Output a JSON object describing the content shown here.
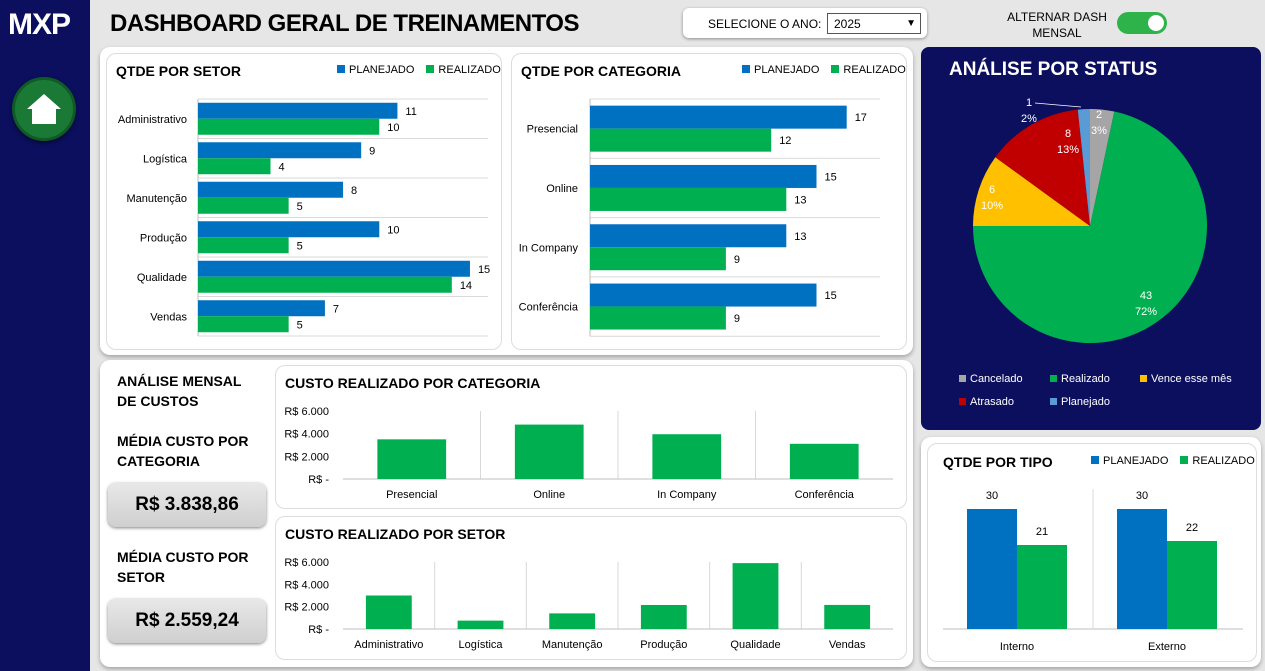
{
  "header": {
    "logo": "MXP",
    "title": "DASHBOARD GERAL DE TREINAMENTOS",
    "year_label": "SELECIONE O ANO:",
    "year_value": "2025",
    "toggle_label": "ALTERNAR DASH MENSAL",
    "toggle_on": true
  },
  "colors": {
    "planejado": "#0070c0",
    "realizado": "#00b050",
    "navy": "#0b0f5e"
  },
  "legend": {
    "planejado": "PLANEJADO",
    "realizado": "REALIZADO"
  },
  "chart_data": [
    {
      "type": "bar",
      "title": "QTDE POR SETOR",
      "orientation": "horizontal",
      "categories": [
        "Administrativo",
        "Logística",
        "Manutenção",
        "Produção",
        "Qualidade",
        "Vendas"
      ],
      "series": [
        {
          "name": "PLANEJADO",
          "values": [
            11,
            9,
            8,
            10,
            15,
            7
          ]
        },
        {
          "name": "REALIZADO",
          "values": [
            10,
            4,
            5,
            5,
            14,
            5
          ]
        }
      ],
      "xlim": [
        0,
        17
      ]
    },
    {
      "type": "bar",
      "title": "QTDE POR CATEGORIA",
      "orientation": "horizontal",
      "categories": [
        "Presencial",
        "Online",
        "In Company",
        "Conferência"
      ],
      "series": [
        {
          "name": "PLANEJADO",
          "values": [
            17,
            15,
            13,
            15
          ]
        },
        {
          "name": "REALIZADO",
          "values": [
            12,
            13,
            9,
            9
          ]
        }
      ],
      "xlim": [
        0,
        19
      ]
    },
    {
      "type": "pie",
      "title": "ANÁLISE POR STATUS",
      "slices": [
        {
          "label": "Cancelado",
          "value": 2,
          "pct": "3%",
          "color": "#a5a5a5"
        },
        {
          "label": "Realizado",
          "value": 43,
          "pct": "72%",
          "color": "#00b050"
        },
        {
          "label": "Vence esse mês",
          "value": 6,
          "pct": "10%",
          "color": "#ffc000"
        },
        {
          "label": "Atrasado",
          "value": 8,
          "pct": "13%",
          "color": "#c00000"
        },
        {
          "label": "Planejado",
          "value": 1,
          "pct": "2%",
          "color": "#5b9bd5"
        }
      ]
    },
    {
      "type": "bar",
      "title": "CUSTO REALIZADO POR CATEGORIA",
      "categories": [
        "Presencial",
        "Online",
        "In Company",
        "Conferência"
      ],
      "values": [
        3500,
        4800,
        3950,
        3105
      ],
      "yticks": [
        "R$ 6.000",
        "R$ 4.000",
        "R$ 2.000",
        "R$ -"
      ],
      "ylim": [
        0,
        6000
      ]
    },
    {
      "type": "bar",
      "title": "CUSTO REALIZADO POR SETOR",
      "categories": [
        "Administrativo",
        "Logística",
        "Manutenção",
        "Produção",
        "Qualidade",
        "Vendas"
      ],
      "values": [
        3000,
        750,
        1400,
        2150,
        5900,
        2155
      ],
      "yticks": [
        "R$ 6.000",
        "R$ 4.000",
        "R$ 2.000",
        "R$ -"
      ],
      "ylim": [
        0,
        6000
      ]
    },
    {
      "type": "bar",
      "title": "QTDE POR TIPO",
      "categories": [
        "Interno",
        "Externo"
      ],
      "series": [
        {
          "name": "PLANEJADO",
          "values": [
            30,
            30
          ]
        },
        {
          "name": "REALIZADO",
          "values": [
            21,
            22
          ]
        }
      ],
      "ylim": [
        0,
        35
      ]
    }
  ],
  "kpis": {
    "section_title": "ANÁLISE MENSAL DE CUSTOS",
    "media_categoria_label": "MÉDIA CUSTO POR CATEGORIA",
    "media_categoria_value": "R$ 3.838,86",
    "media_setor_label": "MÉDIA CUSTO POR SETOR",
    "media_setor_value": "R$ 2.559,24"
  }
}
